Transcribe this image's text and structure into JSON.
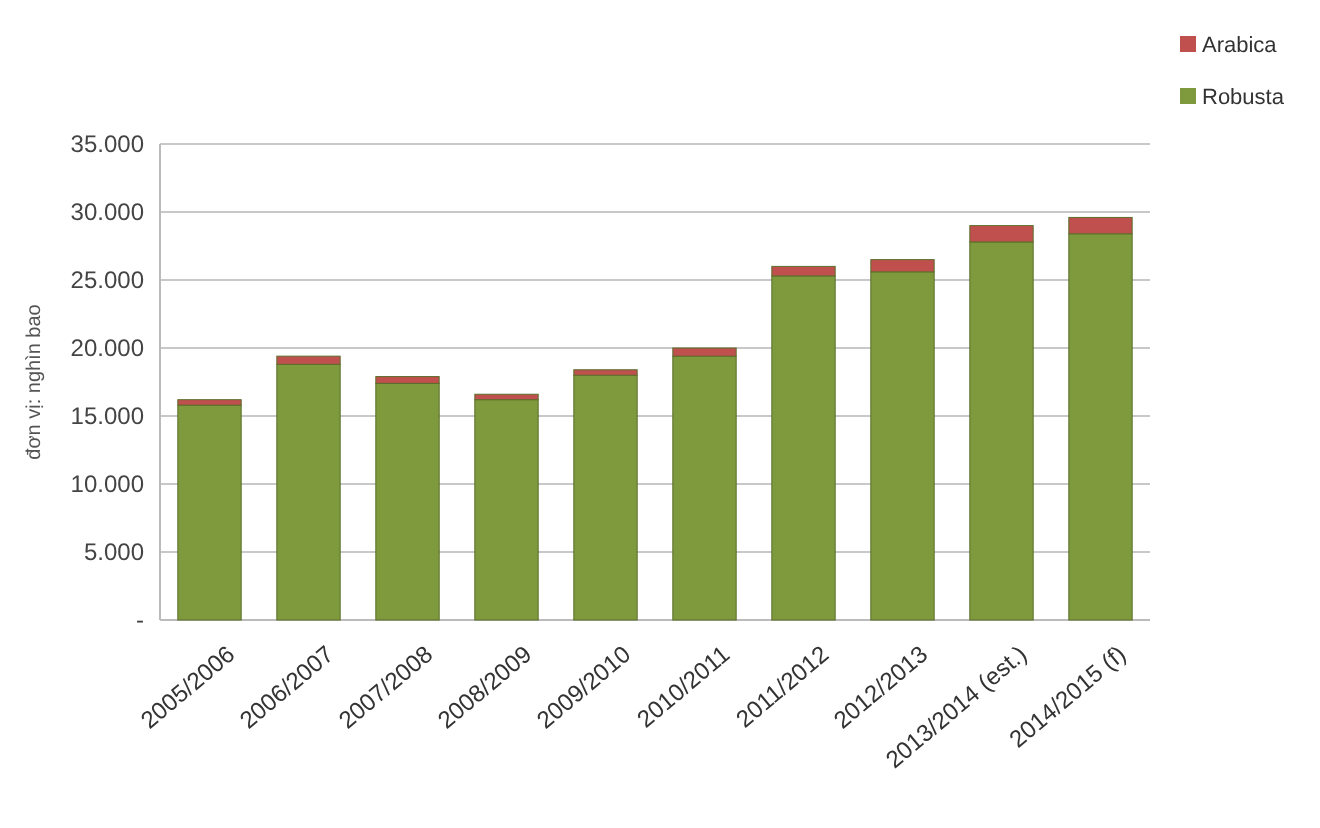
{
  "chart_data": {
    "type": "bar",
    "stacked": true,
    "ylabel": "đơn vị: nghìn bao",
    "categories": [
      "2005/2006",
      "2006/2007",
      "2007/2008",
      "2008/2009",
      "2009/2010",
      "2010/2011",
      "2011/2012",
      "2012/2013",
      "2013/2014 (est.)",
      "2014/2015 (f)"
    ],
    "series": [
      {
        "name": "Robusta",
        "color": "#7f9a3c",
        "values": [
          15.8,
          18.8,
          17.4,
          16.2,
          18.0,
          19.4,
          25.3,
          25.6,
          27.8,
          28.4
        ]
      },
      {
        "name": "Arabica",
        "color": "#c0504d",
        "values": [
          0.4,
          0.6,
          0.5,
          0.4,
          0.4,
          0.6,
          0.7,
          0.9,
          1.2,
          1.2
        ]
      }
    ],
    "ylim": [
      0,
      35
    ],
    "yticks": [
      {
        "value": 0,
        "label": "-"
      },
      {
        "value": 5,
        "label": "5.000"
      },
      {
        "value": 10,
        "label": "10.000"
      },
      {
        "value": 15,
        "label": "15.000"
      },
      {
        "value": 20,
        "label": "20.000"
      },
      {
        "value": 25,
        "label": "25.000"
      },
      {
        "value": 30,
        "label": "30.000"
      },
      {
        "value": 35,
        "label": "35.000"
      }
    ],
    "grid": "y",
    "legend": "top right"
  }
}
